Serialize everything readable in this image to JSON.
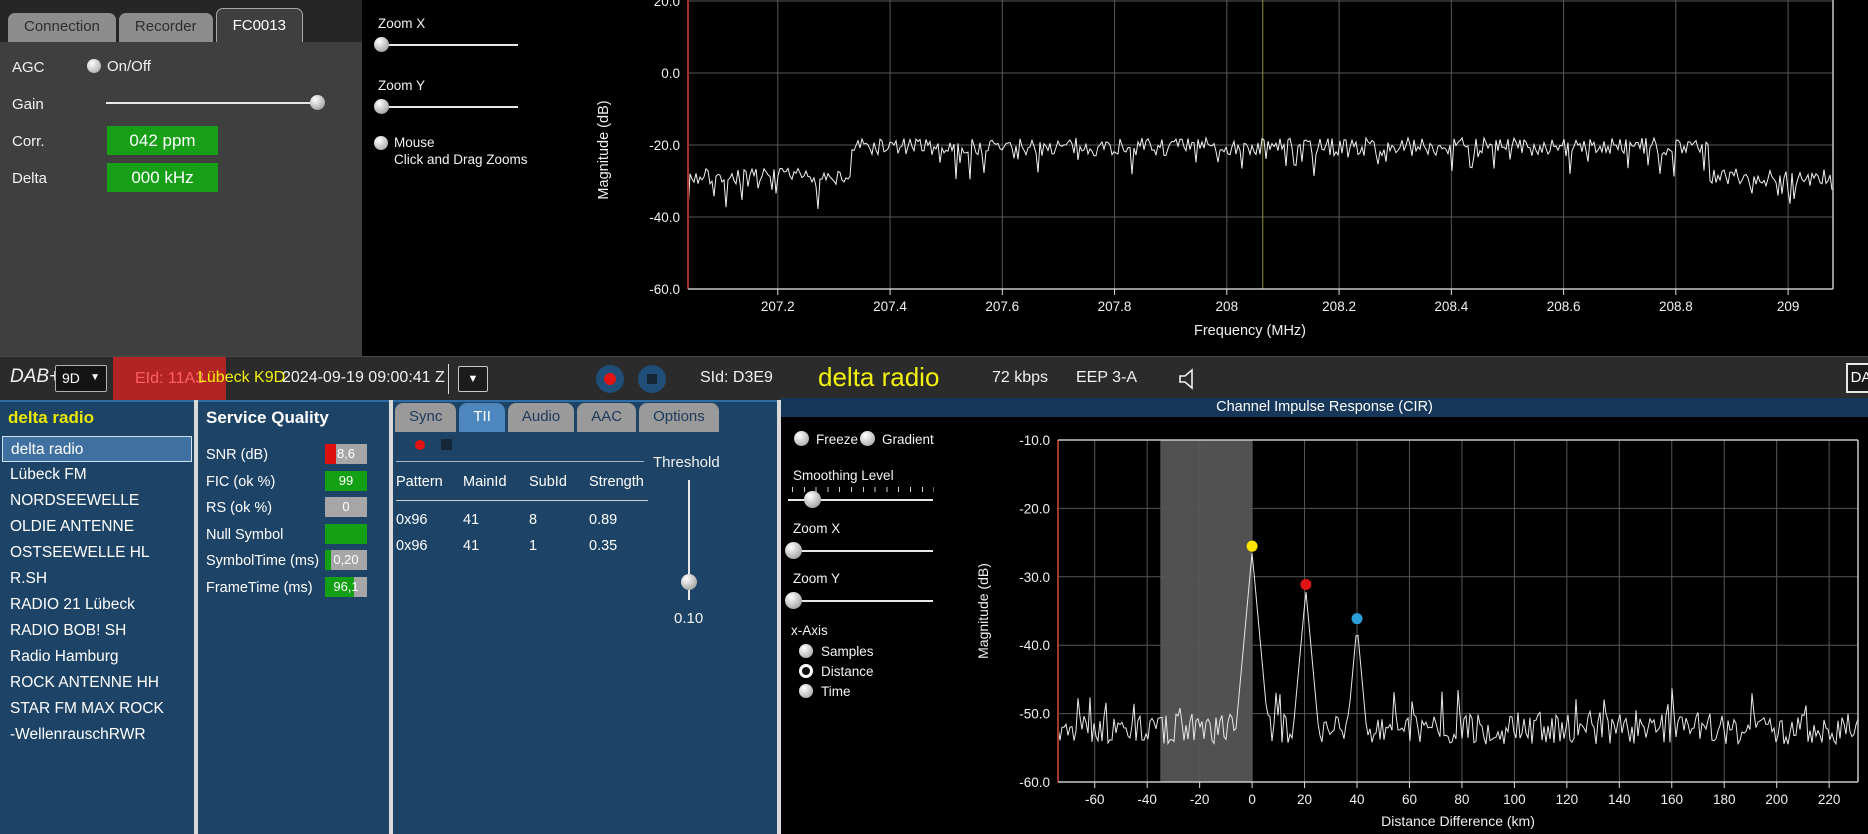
{
  "device_panel": {
    "tabs": [
      "Connection",
      "Recorder",
      "FC0013"
    ],
    "active_tab": "FC0013",
    "agc_label": "AGC",
    "agc_option": "On/Off",
    "gain_label": "Gain",
    "corr_label": "Corr.",
    "corr_value": "042 ppm",
    "delta_label": "Delta",
    "delta_value": "000 kHz"
  },
  "spectrum_controls": {
    "zoom_x_label": "Zoom X",
    "zoom_y_label": "Zoom Y",
    "mouse_label": "Mouse",
    "mouse_caption": "Click and Drag Zooms"
  },
  "status_bar": {
    "mode": "DAB+",
    "channel": "9D",
    "eid": "EId: 11A3",
    "ensemble": "Lübeck K9D",
    "timestamp": "2024-09-19  09:00:41 Z",
    "sid": "SId: D3E9",
    "service": "delta radio",
    "bitrate": "72 kbps",
    "protection": "EEP 3-A",
    "edge_button": "DA"
  },
  "station_list": {
    "header": "delta radio",
    "selected": "delta radio",
    "items": [
      "delta radio",
      "Lübeck FM",
      "NORDSEEWELLE",
      "OLDIE ANTENNE",
      "OSTSEEWELLE HL",
      "R.SH",
      "RADIO 21 Lübeck",
      "RADIO BOB! SH",
      "Radio Hamburg",
      "ROCK ANTENNE HH",
      "STAR FM MAX ROCK",
      "-WellenrauschRWR"
    ]
  },
  "service_quality": {
    "header": "Service Quality",
    "rows": [
      {
        "label": "SNR (dB)",
        "value": "8,6",
        "bar": [
          {
            "color": "#e01010",
            "pct": 26
          },
          {
            "color": "#a6a6a6",
            "pct": 74
          }
        ]
      },
      {
        "label": "FIC (ok %)",
        "value": "99",
        "bar": [
          {
            "color": "#14a014",
            "pct": 100
          }
        ]
      },
      {
        "label": "RS (ok %)",
        "value": "0",
        "bar": [
          {
            "color": "#a6a6a6",
            "pct": 100
          }
        ]
      },
      {
        "label": "Null Symbol",
        "value": "",
        "bar": [
          {
            "color": "#14a014",
            "pct": 100
          }
        ]
      },
      {
        "label": "SymbolTime (ms)",
        "value": "0,20",
        "bar": [
          {
            "color": "#14a014",
            "pct": 15
          },
          {
            "color": "#a6a6a6",
            "pct": 85
          }
        ]
      },
      {
        "label": "FrameTime (ms)",
        "value": "96,1",
        "bar": [
          {
            "color": "#14a014",
            "pct": 69
          },
          {
            "color": "#a6a6a6",
            "pct": 31
          }
        ]
      }
    ]
  },
  "tii": {
    "tabs": [
      "Sync",
      "TII",
      "Audio",
      "AAC",
      "Options"
    ],
    "active_tab": "TII",
    "table": {
      "headers": [
        "Pattern",
        "MainId",
        "SubId",
        "Strength"
      ],
      "rows": [
        [
          "0x96",
          "41",
          "8",
          "0.89"
        ],
        [
          "0x96",
          "41",
          "1",
          "0.35"
        ]
      ]
    },
    "threshold_label": "Threshold",
    "threshold_value": "0.10"
  },
  "cir_controls": {
    "freeze_label": "Freeze",
    "gradient_label": "Gradient",
    "smoothing_label": "Smoothing Level",
    "zoom_x_label": "Zoom X",
    "zoom_y_label": "Zoom Y",
    "xaxis_label": "x-Axis",
    "xaxis_options": [
      "Samples",
      "Distance",
      "Time"
    ],
    "xaxis_selected": "Distance"
  },
  "chart_data": [
    {
      "type": "line",
      "title": "",
      "xlabel": "Frequency (MHz)",
      "ylabel": "Magnitude (dB)",
      "xlim": [
        207.04,
        209.08
      ],
      "ylim": [
        -60,
        20
      ],
      "xticks": [
        207.2,
        207.4,
        207.6,
        207.8,
        208,
        208.2,
        208.4,
        208.6,
        208.8,
        209
      ],
      "xtick_labels": [
        "207.2",
        "207.4",
        "207.6",
        "207.8",
        "208",
        "208.2",
        "208.4",
        "208.6",
        "208.8",
        "209"
      ],
      "yticks": [
        20,
        0,
        -20,
        -40,
        -60
      ],
      "ytick_labels": [
        "20.0",
        "0.0",
        "-20.0",
        "-40.0",
        "-60.0"
      ],
      "grid": true,
      "legend": "none",
      "line_color": "#f2f2f2",
      "center_marker": {
        "mhz": 208.064,
        "color": "#8f8f3a"
      },
      "signal": {
        "segments": [
          {
            "from_mhz": 207.04,
            "to_mhz": 207.33,
            "level_db": -29
          },
          {
            "from_mhz": 207.33,
            "to_mhz": 208.86,
            "level_db": -20.5
          },
          {
            "from_mhz": 208.86,
            "to_mhz": 209.08,
            "level_db": -29
          }
        ],
        "ripple_db": 4
      }
    },
    {
      "type": "line",
      "title": "Channel Impulse Response (CIR)",
      "xlabel": "Distance Difference (km)",
      "ylabel": "Magnitude (dB)",
      "xlim": [
        -74,
        231
      ],
      "ylim": [
        -60,
        -10
      ],
      "xticks": [
        -60,
        -40,
        -20,
        0,
        20,
        40,
        60,
        80,
        100,
        120,
        140,
        160,
        180,
        200,
        220
      ],
      "yticks": [
        -10,
        -20,
        -30,
        -40,
        -50,
        -60
      ],
      "ytick_labels": [
        "-10.0",
        "-20.0",
        "-30.0",
        "-40.0",
        "-50.0",
        "-60.0"
      ],
      "grid": true,
      "legend": "none",
      "line_color": "#e8e8e8",
      "guard_band_km": [
        -35,
        0
      ],
      "noise_floor_db": -53,
      "ripple_db": 4.5,
      "peaks": [
        {
          "km": 0,
          "db": -26.4,
          "marker_color": "#ffe400"
        },
        {
          "km": 20.5,
          "db": -32.0,
          "marker_color": "#e01414"
        },
        {
          "km": 40,
          "db": -37.0,
          "marker_color": "#2b9fd8"
        }
      ]
    }
  ]
}
